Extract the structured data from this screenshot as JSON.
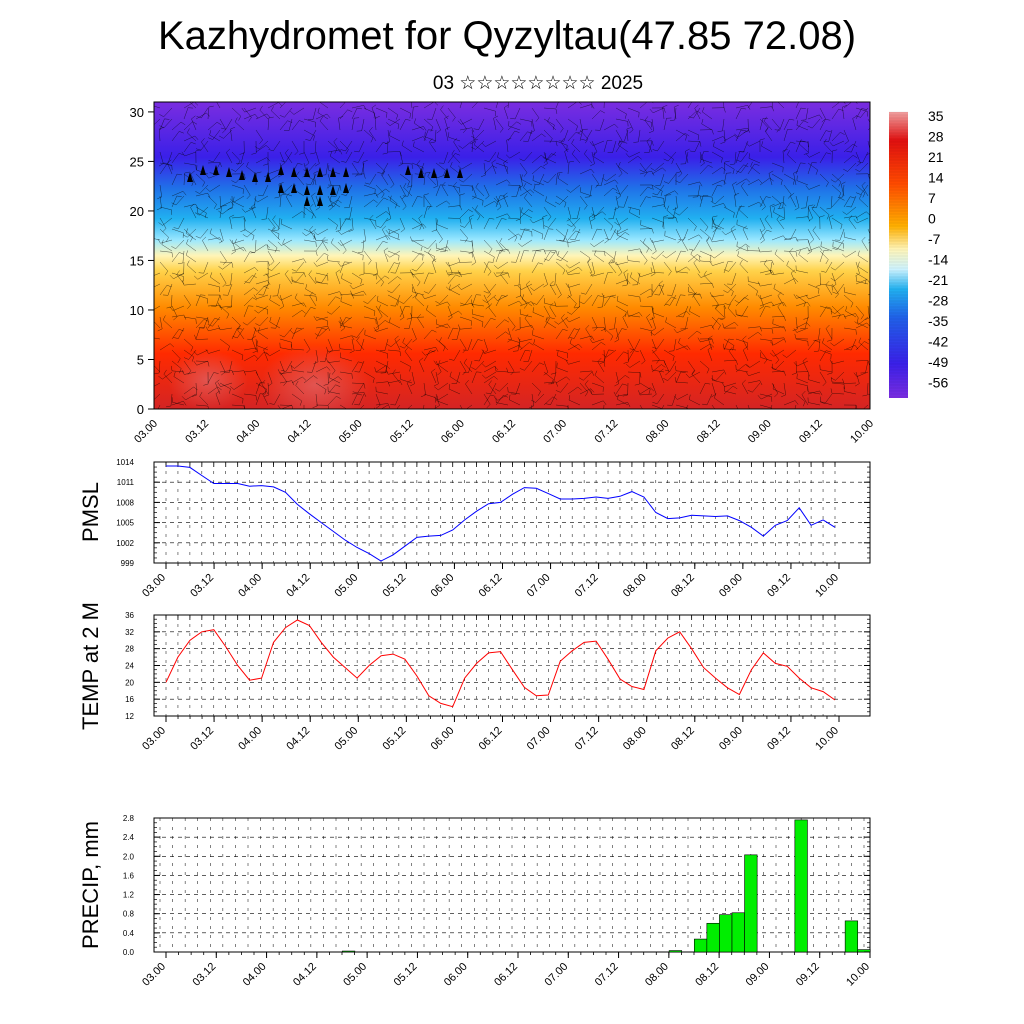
{
  "header": {
    "title": "Kazhydromet for Qyzyltau(47.85 72.08)",
    "subtitle": "03 ☆☆☆☆☆☆☆☆ 2025"
  },
  "time_ticks": [
    "03.00",
    "03.12",
    "04.00",
    "04.12",
    "05.00",
    "05.12",
    "06.00",
    "06.12",
    "07.00",
    "07.12",
    "08.00",
    "08.12",
    "09.00",
    "09.12",
    "10.00"
  ],
  "colors": {
    "pmsl_line": "#0000ff",
    "temp_line": "#ff0000",
    "precip_bar": "#00ee00",
    "wind_barb": "#000000"
  },
  "chart_data": [
    {
      "type": "heatmap",
      "name_in_figure": "upper-air cross-section",
      "y_ticks": [
        "0",
        "5",
        "10",
        "15",
        "20",
        "25",
        "30"
      ],
      "ylim": [
        0,
        31
      ],
      "colorbar_labels": [
        "35",
        "28",
        "21",
        "14",
        "7",
        "0",
        "-7",
        "-14",
        "-21",
        "-28",
        "-35",
        "-42",
        "-49",
        "-56"
      ],
      "colorbar_range": [
        -60,
        38
      ],
      "level_temperature_profile": {
        "levels": [
          0,
          5,
          10,
          15,
          20,
          25,
          30
        ],
        "values": [
          33,
          28,
          20,
          2,
          -28,
          -52,
          -58
        ]
      },
      "wind_barbs": "dense field of wind barbs overlaid across the whole section",
      "grid": false
    },
    {
      "type": "line",
      "ylabel": "PMSL",
      "ylim": [
        999,
        1014
      ],
      "y_ticks": [
        "1014",
        "1011",
        "1008",
        "1005",
        "1002",
        "999"
      ],
      "x": [
        0,
        1,
        2,
        3,
        4,
        5,
        6,
        7,
        8,
        9,
        10,
        11,
        12,
        13,
        14,
        15,
        16,
        17,
        18,
        19,
        20,
        21,
        22,
        23,
        24,
        25,
        26,
        27,
        28,
        29,
        30,
        31,
        32,
        33,
        34,
        35,
        36,
        37,
        38,
        39,
        40,
        41,
        42,
        43,
        44,
        45,
        46,
        47,
        48,
        49,
        50,
        51,
        52,
        53,
        54,
        55,
        56
      ],
      "values": [
        1013.4,
        1013.4,
        1013.2,
        1012.0,
        1010.8,
        1010.8,
        1010.8,
        1010.4,
        1010.5,
        1010.3,
        1009.5,
        1007.7,
        1006.3,
        1005.0,
        1003.7,
        1002.4,
        1001.3,
        1000.4,
        999.3,
        1000.2,
        1001.5,
        1002.8,
        1003.0,
        1003.1,
        1003.9,
        1005.4,
        1006.7,
        1007.8,
        1008.0,
        1009.2,
        1010.2,
        1010.1,
        1009.3,
        1008.5,
        1008.5,
        1008.6,
        1008.8,
        1008.6,
        1008.9,
        1009.6,
        1008.8,
        1006.5,
        1005.6,
        1005.7,
        1006.1,
        1006.0,
        1005.9,
        1006.0,
        1005.3,
        1004.3,
        1003.0,
        1004.6,
        1005.3,
        1007.2,
        1004.6,
        1005.4,
        1004.3
      ]
    },
    {
      "type": "line",
      "ylabel": "TEMP at 2 M",
      "ylim": [
        12,
        36
      ],
      "y_ticks": [
        "36",
        "32",
        "28",
        "24",
        "20",
        "16",
        "12"
      ],
      "values": [
        20,
        26,
        30,
        32,
        32.5,
        28.5,
        24,
        20.5,
        21,
        29.5,
        33,
        34.8,
        33.5,
        29.5,
        26,
        23.5,
        21,
        24,
        26.3,
        26.7,
        25.5,
        21.5,
        16.8,
        15,
        14.2,
        21,
        24.5,
        27,
        27.3,
        23,
        18.8,
        16.8,
        17,
        25,
        27.5,
        29.5,
        29.8,
        25.5,
        20.8,
        19,
        18.3,
        27.5,
        30.5,
        32,
        28,
        23.5,
        21,
        18.7,
        17.1,
        23,
        27,
        24.5,
        23.8,
        21,
        18.7,
        17.8,
        15.8
      ]
    },
    {
      "type": "bar",
      "ylabel": "PRECIP, mm",
      "ylim": [
        0,
        2.8
      ],
      "y_ticks": [
        "2.8",
        "2.4",
        "2.0",
        "1.6",
        "1.2",
        "0.8",
        "0.4",
        "0.0"
      ],
      "bars": [
        {
          "t": 15,
          "value": 0.02
        },
        {
          "t": 41,
          "value": 0.03
        },
        {
          "t": 43,
          "value": 0.27
        },
        {
          "t": 44,
          "value": 0.6
        },
        {
          "t": 45,
          "value": 0.78
        },
        {
          "t": 46,
          "value": 0.82
        },
        {
          "t": 47,
          "value": 2.03
        },
        {
          "t": 51,
          "value": 2.76
        },
        {
          "t": 55,
          "value": 0.65
        },
        {
          "t": 56,
          "value": 0.05
        }
      ]
    }
  ]
}
